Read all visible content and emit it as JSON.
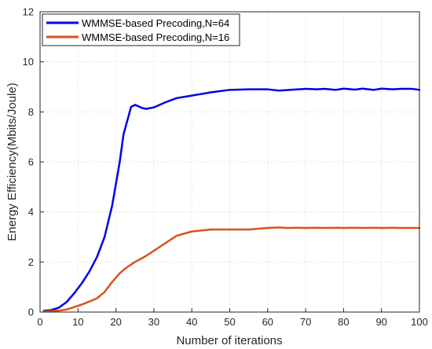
{
  "chart_data": {
    "type": "line",
    "title": "",
    "xlabel": "Number of iterations",
    "ylabel": "Energy Efficiency(Mbits/Joule)",
    "xlim": [
      0,
      100
    ],
    "ylim": [
      0,
      12
    ],
    "xticks": [
      0,
      10,
      20,
      30,
      40,
      50,
      60,
      70,
      80,
      90,
      100
    ],
    "yticks": [
      0,
      2,
      4,
      6,
      8,
      10,
      12
    ],
    "grid": true,
    "legend_position": "top-left",
    "x": [
      1,
      3,
      5,
      7,
      9,
      11,
      13,
      15,
      17,
      19,
      21,
      22,
      23,
      24,
      25,
      26,
      27,
      28,
      30,
      33,
      36,
      40,
      45,
      50,
      55,
      60,
      63,
      65,
      68,
      70,
      73,
      75,
      78,
      80,
      83,
      85,
      88,
      90,
      93,
      95,
      98,
      100
    ],
    "series": [
      {
        "name": "WMMSE-based Precoding,N=64",
        "color": "#0000e6",
        "values": [
          0.05,
          0.08,
          0.18,
          0.4,
          0.75,
          1.15,
          1.62,
          2.2,
          3.0,
          4.25,
          6.0,
          7.1,
          7.65,
          8.2,
          8.28,
          8.22,
          8.15,
          8.12,
          8.18,
          8.38,
          8.55,
          8.65,
          8.78,
          8.88,
          8.9,
          8.9,
          8.85,
          8.87,
          8.9,
          8.92,
          8.9,
          8.92,
          8.88,
          8.93,
          8.89,
          8.93,
          8.88,
          8.93,
          8.9,
          8.92,
          8.92,
          8.88
        ]
      },
      {
        "name": "WMMSE-based Precoding,N=16",
        "color": "#d95319",
        "values": [
          0.02,
          0.04,
          0.06,
          0.1,
          0.2,
          0.3,
          0.42,
          0.55,
          0.8,
          1.2,
          1.55,
          1.68,
          1.8,
          1.9,
          2.0,
          2.08,
          2.16,
          2.25,
          2.45,
          2.75,
          3.05,
          3.22,
          3.3,
          3.3,
          3.3,
          3.36,
          3.38,
          3.36,
          3.37,
          3.36,
          3.37,
          3.36,
          3.37,
          3.36,
          3.37,
          3.36,
          3.37,
          3.36,
          3.37,
          3.36,
          3.36,
          3.36
        ]
      }
    ]
  }
}
